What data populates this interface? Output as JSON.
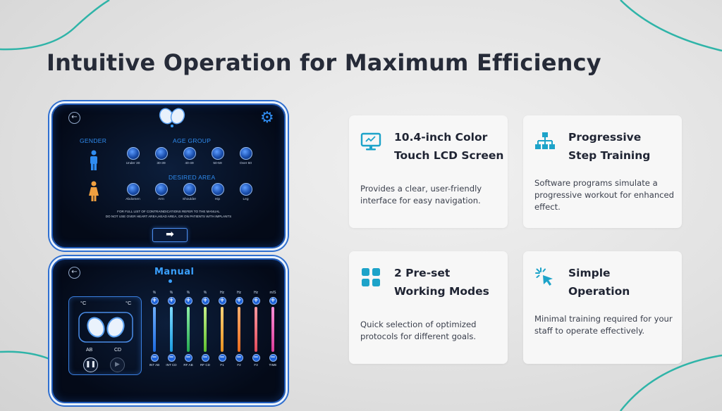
{
  "page": {
    "title": "Intuitive Operation for Maximum Efficiency"
  },
  "colors": {
    "accent": "#1da3c9",
    "title": "#262b38",
    "teal_curve": "#2fb4a8"
  },
  "screen1": {
    "gender_label": "GENDER",
    "age_group_label": "AGE GROUP",
    "age_options": [
      "Under 30",
      "30-39",
      "40-49",
      "50-59",
      "Over 60"
    ],
    "desired_area_label": "DESIRED AREA",
    "area_options": [
      "Abdomen",
      "Arm",
      "Shoulder",
      "Hip",
      "Leg"
    ],
    "warning_lines": [
      "FOR FULL LIST OF CONTRAINDICATIONS REFER TO THE MANUAL",
      "DO NOT USE OVER HEART AREA,HEAD AREA, OR ON PATIENTS WITH IMPLANTS"
    ],
    "next_symbol": "➡"
  },
  "screen2": {
    "title": "Manual",
    "temp_left": "°C",
    "temp_right": "°C",
    "handpiece_a": "AB",
    "handpiece_b": "CD",
    "channels": [
      {
        "unit": "%",
        "label": "INT AB",
        "color": "#2f86f5"
      },
      {
        "unit": "%",
        "label": "INT CD",
        "color": "#27b4f0"
      },
      {
        "unit": "%",
        "label": "RF AB",
        "color": "#34c46a"
      },
      {
        "unit": "%",
        "label": "RF CD",
        "color": "#7bd84a"
      },
      {
        "unit": "Hz",
        "label": "F1",
        "color": "#f0a030"
      },
      {
        "unit": "Hz",
        "label": "F2",
        "color": "#f07a28"
      },
      {
        "unit": "Hz",
        "label": "F3",
        "color": "#f05a6a"
      },
      {
        "unit": "m/S",
        "label": "TIME",
        "color": "#e44aa8"
      }
    ]
  },
  "features": [
    {
      "icon": "monitor-icon",
      "title": [
        "10.4-inch Color",
        "Touch LCD Screen"
      ],
      "description": "Provides a clear, user-friendly interface for easy navigation."
    },
    {
      "icon": "hierarchy-icon",
      "title": [
        "Progressive",
        "Step Training"
      ],
      "description": "Software programs simulate a progressive workout for enhanced effect."
    },
    {
      "icon": "grid-icon",
      "title": [
        "2 Pre-set",
        "Working Modes"
      ],
      "description": "Quick selection of optimized protocols for different goals."
    },
    {
      "icon": "cursor-click-icon",
      "title": [
        "Simple",
        "Operation"
      ],
      "description": "Minimal training required for your staff to operate effectively."
    }
  ]
}
